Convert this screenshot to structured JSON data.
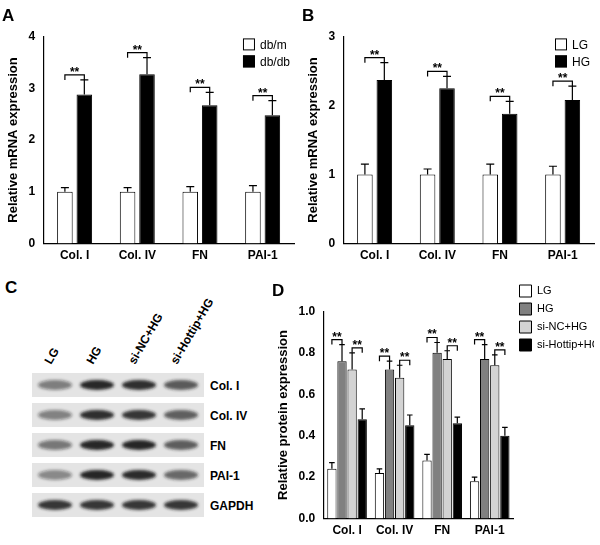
{
  "chart_data": [
    {
      "type": "bar",
      "title": "A",
      "y_label": "Relative mRNA expression",
      "categories": [
        "Col. I",
        "Col. IV",
        "FN",
        "PAI-1"
      ],
      "series": [
        {
          "name": "db/m",
          "color": "#ffffff",
          "values": [
            1.0,
            1.0,
            1.0,
            1.0
          ],
          "errors": [
            0.08,
            0.08,
            0.1,
            0.12
          ]
        },
        {
          "name": "db/db",
          "color": "#000000",
          "values": [
            2.88,
            3.27,
            2.67,
            2.48
          ],
          "errors": [
            0.28,
            0.32,
            0.25,
            0.28
          ]
        }
      ],
      "ylim": [
        0,
        4
      ],
      "yticks": [
        0,
        1,
        2,
        3,
        4
      ],
      "grid": false,
      "legend": "upper right",
      "annotations": [
        {
          "text": "**",
          "category": "Col. I",
          "between": [
            "db/m",
            "db/db"
          ]
        },
        {
          "text": "**",
          "category": "Col. IV",
          "between": [
            "db/m",
            "db/db"
          ]
        },
        {
          "text": "**",
          "category": "FN",
          "between": [
            "db/m",
            "db/db"
          ]
        },
        {
          "text": "**",
          "category": "PAI-1",
          "between": [
            "db/m",
            "db/db"
          ]
        }
      ]
    },
    {
      "type": "bar",
      "title": "B",
      "y_label": "Relative mRNA expression",
      "categories": [
        "Col. I",
        "Col. IV",
        "FN",
        "PAI-1"
      ],
      "series": [
        {
          "name": "LG",
          "color": "#ffffff",
          "values": [
            1.0,
            1.0,
            1.0,
            1.0
          ],
          "errors": [
            0.15,
            0.08,
            0.15,
            0.12
          ]
        },
        {
          "name": "HG",
          "color": "#000000",
          "values": [
            2.37,
            2.25,
            1.88,
            2.08
          ],
          "errors": [
            0.25,
            0.17,
            0.18,
            0.2
          ]
        }
      ],
      "ylim": [
        0,
        3
      ],
      "yticks": [
        0,
        1,
        2,
        3
      ],
      "grid": false,
      "legend": "upper right",
      "annotations": [
        {
          "text": "**",
          "category": "Col. I",
          "between": [
            "LG",
            "HG"
          ]
        },
        {
          "text": "**",
          "category": "Col. IV",
          "between": [
            "LG",
            "HG"
          ]
        },
        {
          "text": "**",
          "category": "FN",
          "between": [
            "LG",
            "HG"
          ]
        },
        {
          "text": "**",
          "category": "PAI-1",
          "between": [
            "LG",
            "HG"
          ]
        }
      ]
    },
    {
      "type": "bar",
      "title": "D",
      "y_label": "Relative protein expression",
      "categories": [
        "Col. I",
        "Col. IV",
        "FN",
        "PAI-1"
      ],
      "series": [
        {
          "name": "LG",
          "color": "#ffffff",
          "values": [
            0.24,
            0.22,
            0.28,
            0.18
          ],
          "errors": [
            0.03,
            0.02,
            0.03,
            0.02
          ]
        },
        {
          "name": "HG",
          "color": "#808080",
          "values": [
            0.76,
            0.72,
            0.8,
            0.77
          ],
          "errors": [
            0.08,
            0.04,
            0.05,
            0.07
          ]
        },
        {
          "name": "si-NC+HG",
          "color": "#d3d3d3",
          "values": [
            0.72,
            0.68,
            0.77,
            0.74
          ],
          "errors": [
            0.08,
            0.06,
            0.04,
            0.05
          ]
        },
        {
          "name": "si-Hottip+HG",
          "color": "#000000",
          "values": [
            0.48,
            0.45,
            0.46,
            0.4
          ],
          "errors": [
            0.05,
            0.05,
            0.03,
            0.04
          ]
        }
      ],
      "ylim": [
        0,
        1.0
      ],
      "yticks": [
        {
          "value": 0,
          "label": "0.0"
        },
        0.2,
        0.4,
        0.6,
        0.8,
        {
          "value": 1.0,
          "label": "1.0"
        }
      ],
      "grid": false,
      "legend": "right",
      "annotations": [
        {
          "text": "**",
          "category": "Col. I",
          "between": [
            "LG",
            "HG"
          ]
        },
        {
          "text": "**",
          "category": "Col. I",
          "between": [
            "si-NC+HG",
            "si-Hottip+HG"
          ]
        },
        {
          "text": "**",
          "category": "Col. IV",
          "between": [
            "LG",
            "HG"
          ]
        },
        {
          "text": "**",
          "category": "Col. IV",
          "between": [
            "si-NC+HG",
            "si-Hottip+HG"
          ]
        },
        {
          "text": "**",
          "category": "FN",
          "between": [
            "LG",
            "HG"
          ]
        },
        {
          "text": "**",
          "category": "FN",
          "between": [
            "si-NC+HG",
            "si-Hottip+HG"
          ]
        },
        {
          "text": "**",
          "category": "PAI-1",
          "between": [
            "LG",
            "HG"
          ]
        },
        {
          "text": "**",
          "category": "PAI-1",
          "between": [
            "si-NC+HG",
            "si-Hottip+HG"
          ]
        }
      ]
    }
  ],
  "blot": {
    "title": "C",
    "lanes": [
      "LG",
      "HG",
      "si-NC+HG",
      "si-Hottip+HG"
    ],
    "proteins": [
      "Col. I",
      "Col. IV",
      "FN",
      "PAI-1",
      "GAPDH"
    ]
  }
}
